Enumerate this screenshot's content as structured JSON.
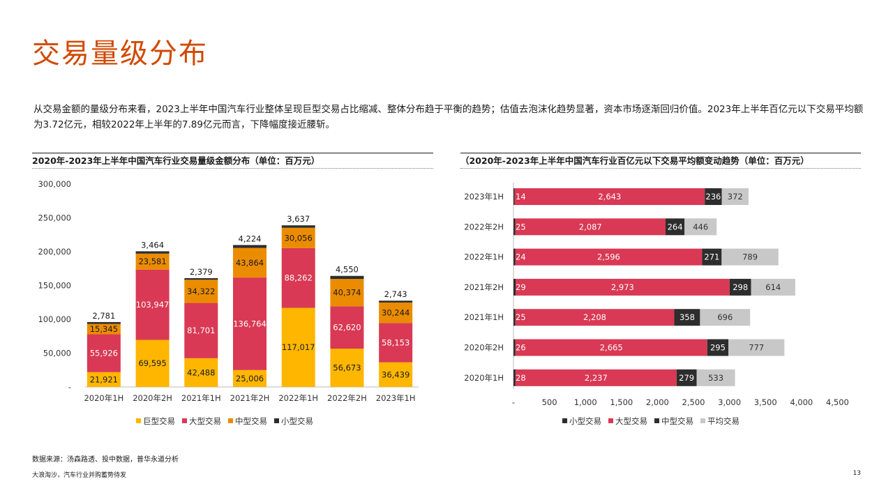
{
  "page": {
    "title": "交易量级分布",
    "intro": "从交易金额的量级分布来看，2023上半年中国汽车行业整体呈现巨型交易占比缩减、整体分布趋于平衡的趋势；估值去泡沫化趋势显著，资本市场逐渐回归价值。2023年上半年百亿元以下交易平均额为3.72亿元，相较2022年上半年的7.89亿元而言，下降幅度接近腰斩。",
    "source": "数据来源：汤森路透、投中数据，普华永道分析",
    "footer": "大浪淘沙，汽车行业并购蓄势待发",
    "page_number": "13"
  },
  "colors": {
    "giant": "#ffb600",
    "large": "#d93954",
    "medium": "#eb8c00",
    "small": "#2d2d2d",
    "average": "#c8c8c8",
    "title": "#d04a02"
  },
  "chart_data": [
    {
      "type": "bar",
      "stacked": true,
      "title": "2020年-2023年上半年中国汽车行业交易量级金额分布（单位：百万元）",
      "categories": [
        "2020年1H",
        "2020年2H",
        "2021年1H",
        "2021年2H",
        "2022年1H",
        "2022年2H",
        "2023年1H"
      ],
      "series": [
        {
          "name": "巨型交易",
          "values": [
            21921,
            69595,
            42488,
            25006,
            117017,
            56673,
            36439
          ]
        },
        {
          "name": "大型交易",
          "values": [
            55926,
            103947,
            81701,
            136764,
            88262,
            62620,
            58153
          ]
        },
        {
          "name": "中型交易",
          "values": [
            15345,
            23581,
            34322,
            43864,
            30056,
            40374,
            30244
          ]
        },
        {
          "name": "小型交易",
          "values": [
            2781,
            3464,
            2379,
            4224,
            3637,
            4550,
            2743
          ]
        }
      ],
      "y_ticks": [
        "-",
        "50,000",
        "100,000",
        "150,000",
        "200,000",
        "250,000",
        "300,000"
      ],
      "ylim": [
        0,
        300000
      ],
      "legend": "bottom",
      "grid": false
    },
    {
      "type": "bar",
      "orientation": "horizontal",
      "stacked": true,
      "title": "（2020年-2023年上半年中国汽车行业百亿元以下交易平均额变动趋势（单位：百万元）",
      "categories": [
        "2023年1H",
        "2022年2H",
        "2022年1H",
        "2021年2H",
        "2021年1H",
        "2020年2H",
        "2020年1H"
      ],
      "series": [
        {
          "name": "小型交易",
          "values": [
            14,
            25,
            24,
            29,
            25,
            26,
            28
          ]
        },
        {
          "name": "大型交易",
          "values": [
            2643,
            2087,
            2596,
            2973,
            2208,
            2665,
            2237
          ]
        },
        {
          "name": "中型交易",
          "values": [
            236,
            264,
            271,
            298,
            358,
            295,
            279
          ]
        },
        {
          "name": "平均交易",
          "values": [
            372,
            446,
            789,
            614,
            696,
            777,
            533
          ]
        }
      ],
      "x_ticks": [
        "-",
        "500",
        "1,000",
        "1,500",
        "2,000",
        "2,500",
        "3,000",
        "3,500",
        "4,000",
        "4,500"
      ],
      "xlim": [
        0,
        4500
      ],
      "legend": "bottom",
      "grid": false
    }
  ]
}
